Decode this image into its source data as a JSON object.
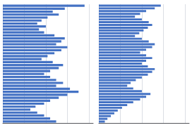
{
  "chart_data": [
    {
      "type": "bar",
      "orientation": "horizontal",
      "color": "#4472C4",
      "values": [
        0.95,
        0.72,
        0.58,
        0.65,
        0.52,
        0.45,
        0.4,
        0.5,
        0.42,
        0.48,
        0.6,
        0.72,
        0.68,
        0.62,
        0.75,
        0.68,
        0.6,
        0.52,
        0.45,
        0.58,
        0.7,
        0.65,
        0.55,
        0.48,
        0.55,
        0.62,
        0.7,
        0.62,
        0.78,
        0.88,
        0.75,
        0.65,
        0.55,
        0.48,
        0.38,
        0.32,
        0.4,
        0.48,
        0.55,
        0.62
      ],
      "xlim": [
        0,
        1.05
      ],
      "xticks": [
        0,
        0.25,
        0.5,
        0.75,
        1.0
      ],
      "grid": true,
      "tick_labels": false
    },
    {
      "type": "bar",
      "orientation": "horizontal",
      "color": "#4472C4",
      "values": [
        0.72,
        0.65,
        0.55,
        0.48,
        0.42,
        0.5,
        0.58,
        0.62,
        0.57,
        0.52,
        0.47,
        0.42,
        0.5,
        0.58,
        0.65,
        0.62,
        0.55,
        0.48,
        0.55,
        0.62,
        0.55,
        0.5,
        0.57,
        0.65,
        0.62,
        0.57,
        0.5,
        0.43,
        0.37,
        0.33,
        0.4,
        0.5,
        0.6,
        0.55,
        0.48,
        0.4,
        0.33,
        0.27,
        0.22,
        0.18,
        0.14,
        0.1,
        0.07
      ],
      "xlim": [
        0,
        1.05
      ],
      "xticks": [
        0,
        0.25,
        0.5,
        0.75,
        1.0
      ],
      "grid": true,
      "tick_labels": false
    }
  ]
}
